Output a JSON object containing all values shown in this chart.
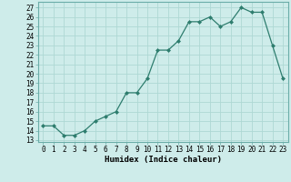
{
  "x": [
    0,
    1,
    2,
    3,
    4,
    5,
    6,
    7,
    8,
    9,
    10,
    11,
    12,
    13,
    14,
    15,
    16,
    17,
    18,
    19,
    20,
    21,
    22,
    23
  ],
  "y": [
    14.5,
    14.5,
    13.5,
    13.5,
    14.0,
    15.0,
    15.5,
    16.0,
    18.0,
    18.0,
    19.5,
    22.5,
    22.5,
    23.5,
    25.5,
    25.5,
    26.0,
    25.0,
    25.5,
    27.0,
    26.5,
    26.5,
    23.0,
    19.5
  ],
  "line_color": "#2e7d6e",
  "marker": "D",
  "marker_size": 2.0,
  "linewidth": 0.9,
  "xlabel": "Humidex (Indice chaleur)",
  "ylabel_ticks": [
    13,
    14,
    15,
    16,
    17,
    18,
    19,
    20,
    21,
    22,
    23,
    24,
    25,
    26,
    27
  ],
  "ylim": [
    12.8,
    27.6
  ],
  "xlim": [
    -0.5,
    23.5
  ],
  "background_color": "#ceecea",
  "grid_color": "#aed8d4",
  "tick_fontsize": 5.5,
  "xlabel_fontsize": 6.5
}
